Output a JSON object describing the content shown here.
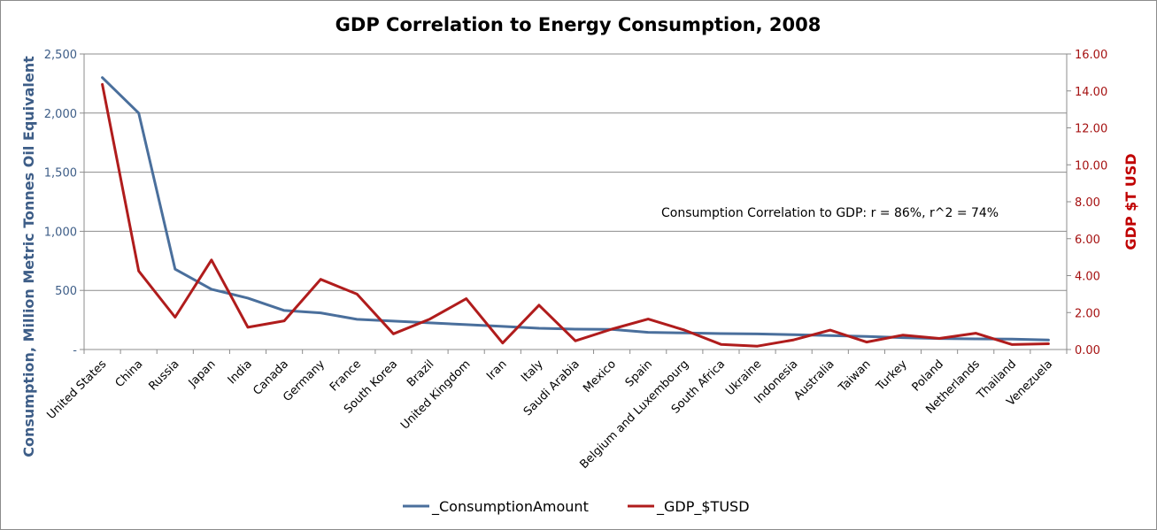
{
  "chart_data": {
    "type": "line",
    "title": "GDP Correlation to Energy Consumption, 2008",
    "ylabel": "Consumption, Million Metric Tonnes Oil Equivalent",
    "y2label": "GDP $T USD",
    "annotation": "Consumption Correlation to GDP: r = 86%, r^2 = 74%",
    "ylim": [
      0,
      2500
    ],
    "y2lim": [
      0,
      16
    ],
    "yticks": [
      "-",
      "500",
      "1,000",
      "1,500",
      "2,000",
      "2,500"
    ],
    "y2ticks": [
      "0.00",
      "2.00",
      "4.00",
      "6.00",
      "8.00",
      "10.00",
      "12.00",
      "14.00",
      "16.00"
    ],
    "grid": true,
    "legend_position": "bottom",
    "categories": [
      "United States",
      "China",
      "Russia",
      "Japan",
      "India",
      "Canada",
      "Germany",
      "France",
      "South Korea",
      "Brazil",
      "United Kingdom",
      "Iran",
      "Italy",
      "Saudi Arabia",
      "Mexico",
      "Spain",
      "Belgium and Luxembourg",
      "South Africa",
      "Ukraine",
      "Indonesia",
      "Australia",
      "Taiwan",
      "Turkey",
      "Poland",
      "Netherlands",
      "Thailand",
      "Venezuela"
    ],
    "series": [
      {
        "name": "_ConsumptionAmount",
        "axis": "left",
        "color": "#4a6f9c",
        "values": [
          2300,
          2000,
          680,
          510,
          435,
          330,
          310,
          255,
          240,
          225,
          210,
          195,
          180,
          172,
          170,
          145,
          140,
          135,
          132,
          125,
          118,
          110,
          100,
          93,
          90,
          88,
          80
        ]
      },
      {
        "name": "_GDP_$TUSD",
        "axis": "right",
        "color": "#b01c1c",
        "values": [
          14.35,
          4.25,
          1.75,
          4.85,
          1.2,
          1.55,
          3.8,
          3.0,
          0.85,
          1.65,
          2.75,
          0.35,
          2.4,
          0.47,
          1.1,
          1.65,
          1.05,
          0.28,
          0.18,
          0.52,
          1.05,
          0.4,
          0.78,
          0.6,
          0.88,
          0.27,
          0.31
        ]
      }
    ]
  }
}
